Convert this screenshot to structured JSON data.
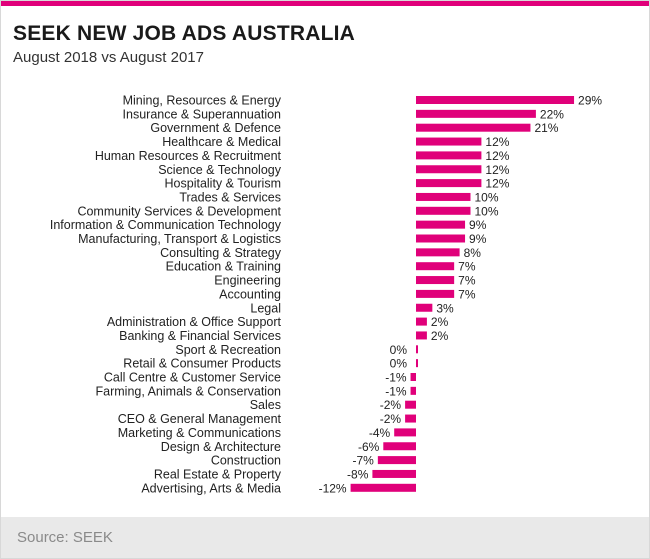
{
  "header": {
    "title": "SEEK NEW JOB ADS AUSTRALIA",
    "subtitle": "August 2018 vs August 2017"
  },
  "footer": {
    "source": "Source: SEEK"
  },
  "colors": {
    "accent": "#e0007a",
    "bar": "#e0007a",
    "footer_bg": "#e9e9e9"
  },
  "chart_data": {
    "type": "bar",
    "orientation": "horizontal",
    "title": "SEEK NEW JOB ADS AUSTRALIA",
    "subtitle": "August 2018 vs August 2017",
    "value_suffix": "%",
    "categories": [
      "Mining, Resources & Energy",
      "Insurance & Superannuation",
      "Government & Defence",
      "Healthcare & Medical",
      "Human Resources & Recruitment",
      "Science & Technology",
      "Hospitality & Tourism",
      "Trades & Services",
      "Community Services & Development",
      "Information & Communication Technology",
      "Manufacturing, Transport & Logistics",
      "Consulting & Strategy",
      "Education & Training",
      "Engineering",
      "Accounting",
      "Legal",
      "Administration & Office Support",
      "Banking & Financial Services",
      "Sport & Recreation",
      "Retail & Consumer Products",
      "Call Centre & Customer Service",
      "Farming, Animals & Conservation",
      "Sales",
      "CEO & General Management",
      "Marketing & Communications",
      "Design & Architecture",
      "Construction",
      "Real Estate & Property",
      "Advertising, Arts & Media"
    ],
    "values": [
      29,
      22,
      21,
      12,
      12,
      12,
      12,
      10,
      10,
      9,
      9,
      8,
      7,
      7,
      7,
      3,
      2,
      2,
      0,
      0,
      -1,
      -1,
      -2,
      -2,
      -4,
      -6,
      -7,
      -8,
      -12
    ],
    "xlim": [
      -12,
      29
    ],
    "grid": false,
    "legend": "none"
  }
}
